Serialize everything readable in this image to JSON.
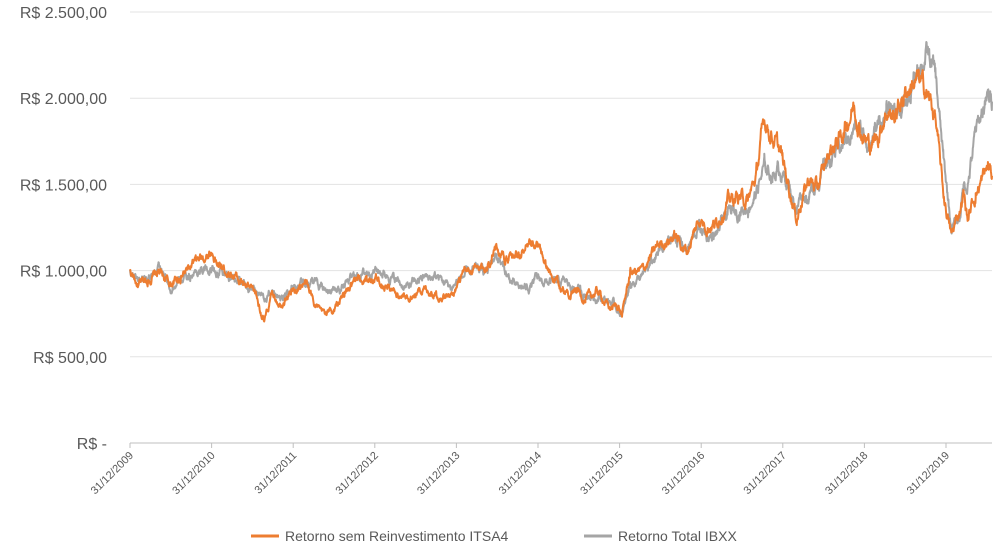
{
  "chart_data": {
    "type": "line",
    "title": "",
    "xlabel": "",
    "ylabel": "",
    "ylim": [
      0,
      2500
    ],
    "y_ticks": [
      0,
      500,
      1000,
      1500,
      2000,
      2500
    ],
    "y_tick_labels": [
      "R$ -",
      "R$ 500,00",
      "R$ 1.000,00",
      "R$ 1.500,00",
      "R$ 2.000,00",
      "R$ 2.500,00"
    ],
    "x_tick_labels": [
      "31/12/2009",
      "31/12/2010",
      "31/12/2011",
      "31/12/2012",
      "31/12/2013",
      "31/12/2014",
      "31/12/2015",
      "31/12/2016",
      "31/12/2017",
      "31/12/2018",
      "31/12/2019"
    ],
    "x_range_years": [
      0,
      10.6
    ],
    "grid": true,
    "legend_position": "bottom",
    "series": [
      {
        "name": "Retorno sem Reinvestimento ITSA4",
        "color": "#ED7D31",
        "x": [
          0,
          0.1,
          0.2,
          0.35,
          0.5,
          0.7,
          0.85,
          1.0,
          1.1,
          1.25,
          1.4,
          1.55,
          1.65,
          1.75,
          1.85,
          2.0,
          2.15,
          2.35,
          2.5,
          2.6,
          2.75,
          2.9,
          3.0,
          3.2,
          3.4,
          3.6,
          3.8,
          3.95,
          4.1,
          4.25,
          4.4,
          4.5,
          4.65,
          4.75,
          4.9,
          5.0,
          5.15,
          5.35,
          5.5,
          5.6,
          5.75,
          5.9,
          6.0,
          6.05,
          6.15,
          6.3,
          6.5,
          6.7,
          6.85,
          7.0,
          7.1,
          7.2,
          7.35,
          7.5,
          7.6,
          7.7,
          7.8,
          7.9,
          8.0,
          8.1,
          8.2,
          8.25,
          8.35,
          8.45,
          8.6,
          8.75,
          8.9,
          9.0,
          9.1,
          9.2,
          9.3,
          9.4,
          9.5,
          9.6,
          9.7,
          9.8,
          9.9,
          10.0,
          10.1,
          10.2,
          10.25,
          10.3,
          10.4,
          10.5,
          10.55,
          10.6
        ],
        "values": [
          1000,
          910,
          940,
          990,
          920,
          1000,
          1060,
          1110,
          1020,
          990,
          920,
          860,
          700,
          860,
          820,
          880,
          930,
          750,
          770,
          840,
          920,
          950,
          960,
          900,
          830,
          900,
          860,
          850,
          970,
          1000,
          1030,
          1150,
          1050,
          1090,
          1120,
          1150,
          990,
          870,
          890,
          830,
          880,
          780,
          800,
          740,
          990,
          1000,
          1150,
          1200,
          1110,
          1300,
          1260,
          1270,
          1400,
          1430,
          1400,
          1550,
          1880,
          1780,
          1680,
          1500,
          1300,
          1400,
          1530,
          1470,
          1690,
          1780,
          1960,
          1800,
          1720,
          1780,
          1930,
          1890,
          2000,
          2080,
          2100,
          2030,
          1900,
          1450,
          1200,
          1350,
          1450,
          1300,
          1450,
          1550,
          1600,
          1550
        ]
      },
      {
        "name": "Retorno Total IBXX",
        "color": "#A5A5A5",
        "x": [
          0,
          0.1,
          0.2,
          0.35,
          0.5,
          0.7,
          0.85,
          1.0,
          1.1,
          1.25,
          1.4,
          1.55,
          1.65,
          1.75,
          1.85,
          2.0,
          2.15,
          2.35,
          2.5,
          2.6,
          2.75,
          2.9,
          3.0,
          3.2,
          3.4,
          3.6,
          3.8,
          3.95,
          4.1,
          4.25,
          4.4,
          4.5,
          4.65,
          4.75,
          4.9,
          5.0,
          5.15,
          5.35,
          5.5,
          5.6,
          5.75,
          5.9,
          6.0,
          6.05,
          6.15,
          6.3,
          6.5,
          6.7,
          6.85,
          7.0,
          7.1,
          7.2,
          7.35,
          7.5,
          7.6,
          7.7,
          7.8,
          7.9,
          8.0,
          8.1,
          8.2,
          8.25,
          8.35,
          8.45,
          8.6,
          8.75,
          8.9,
          9.0,
          9.1,
          9.2,
          9.3,
          9.4,
          9.5,
          9.6,
          9.7,
          9.8,
          9.9,
          10.0,
          10.1,
          10.2,
          10.25,
          10.3,
          10.4,
          10.5,
          10.55,
          10.6
        ],
        "values": [
          1000,
          950,
          970,
          1010,
          900,
          960,
          1000,
          1010,
          990,
          960,
          920,
          900,
          820,
          880,
          850,
          910,
          950,
          920,
          880,
          900,
          960,
          990,
          1010,
          970,
          900,
          960,
          960,
          900,
          970,
          1000,
          1000,
          1100,
          960,
          900,
          900,
          950,
          930,
          930,
          890,
          860,
          850,
          820,
          780,
          730,
          930,
          960,
          1100,
          1200,
          1120,
          1250,
          1200,
          1200,
          1330,
          1350,
          1370,
          1450,
          1600,
          1560,
          1590,
          1500,
          1350,
          1450,
          1430,
          1520,
          1650,
          1720,
          1820,
          1800,
          1740,
          1850,
          1900,
          1950,
          1950,
          2000,
          2200,
          2250,
          2150,
          1650,
          1250,
          1300,
          1500,
          1500,
          1800,
          1950,
          2000,
          1980
        ]
      }
    ]
  }
}
